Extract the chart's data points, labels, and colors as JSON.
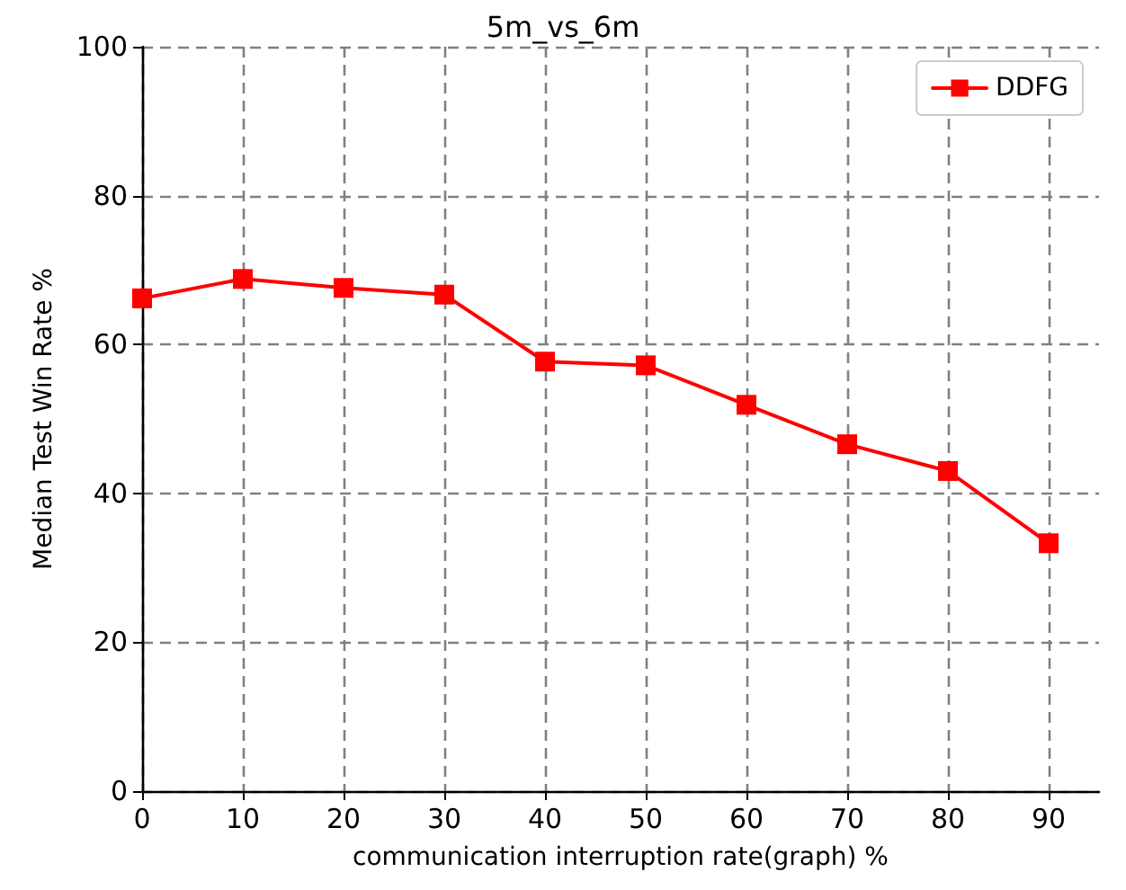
{
  "chart_data": {
    "type": "line",
    "title": "5m_vs_6m",
    "xlabel": "communication interruption rate(graph) %",
    "ylabel": "Median Test Win Rate %",
    "x": [
      0,
      10,
      20,
      30,
      40,
      50,
      60,
      70,
      80,
      90
    ],
    "series": [
      {
        "name": "DDFG",
        "color": "#ff0000",
        "values": [
          66.2,
          68.8,
          67.6,
          66.7,
          57.7,
          57.2,
          51.9,
          46.6,
          43.0,
          33.3
        ]
      }
    ],
    "xlim": [
      0,
      95
    ],
    "xticks": [
      0,
      10,
      20,
      30,
      40,
      50,
      60,
      70,
      80,
      90
    ],
    "ylim": [
      0,
      100
    ],
    "yticks": [
      0,
      20,
      40,
      60,
      80,
      100
    ],
    "grid": true,
    "legend": "top right",
    "marker": "square",
    "line_style": "solid"
  }
}
